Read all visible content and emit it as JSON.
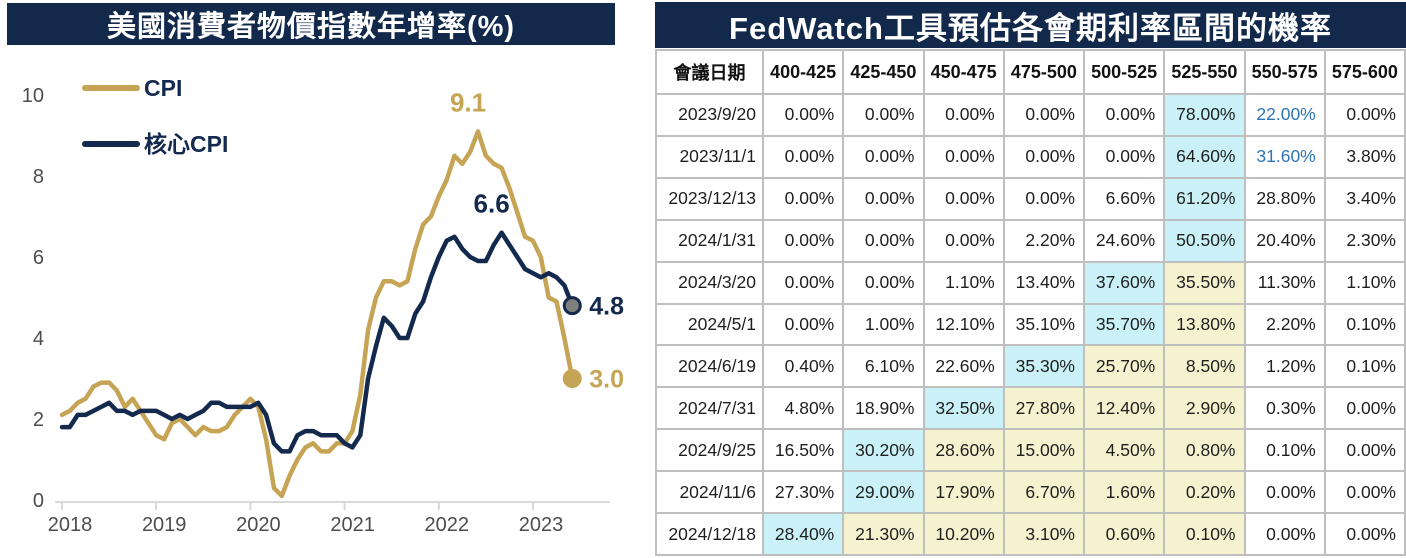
{
  "left_panel": {
    "title": "美國消費者物價指數年增率(%)"
  },
  "chart_data": {
    "type": "line",
    "title": "美國消費者物價指數年增率(%)",
    "x_unit": "month",
    "x_start": "2018-01",
    "x_end": "2023-06",
    "x_tick_labels": [
      "2018",
      "2019",
      "2020",
      "2021",
      "2022",
      "2023"
    ],
    "y_ticks": [
      0,
      2,
      4,
      6,
      8,
      10
    ],
    "ylim": [
      0,
      10
    ],
    "grid": false,
    "legend_position": "top-left",
    "axis_color": "#D9D9D9",
    "axis_text_color": "#4D4D4D",
    "series": [
      {
        "name": "CPI",
        "color": "#C6A455",
        "peak_label": "9.1",
        "end_label": "3.0",
        "marker": {
          "fill": "#C6A455",
          "stroke": "#C6A455"
        },
        "values": [
          2.1,
          2.2,
          2.4,
          2.5,
          2.8,
          2.9,
          2.9,
          2.7,
          2.3,
          2.5,
          2.2,
          1.9,
          1.6,
          1.5,
          1.9,
          2.0,
          1.8,
          1.6,
          1.8,
          1.7,
          1.7,
          1.8,
          2.1,
          2.3,
          2.5,
          2.3,
          1.5,
          0.3,
          0.1,
          0.6,
          1.0,
          1.3,
          1.4,
          1.2,
          1.2,
          1.4,
          1.4,
          1.7,
          2.6,
          4.2,
          5.0,
          5.4,
          5.4,
          5.3,
          5.4,
          6.2,
          6.8,
          7.0,
          7.5,
          7.9,
          8.5,
          8.3,
          8.6,
          9.1,
          8.5,
          8.3,
          8.2,
          7.7,
          7.1,
          6.5,
          6.4,
          6.0,
          5.0,
          4.9,
          4.0,
          3.0
        ]
      },
      {
        "name": "核心CPI",
        "color": "#14294E",
        "peak_label": "6.6",
        "end_label": "4.8",
        "marker": {
          "fill": "#7F7F7F",
          "stroke": "#14294E"
        },
        "values": [
          1.8,
          1.8,
          2.1,
          2.1,
          2.2,
          2.3,
          2.4,
          2.2,
          2.2,
          2.1,
          2.2,
          2.2,
          2.2,
          2.1,
          2.0,
          2.1,
          2.0,
          2.1,
          2.2,
          2.4,
          2.4,
          2.3,
          2.3,
          2.3,
          2.3,
          2.4,
          2.1,
          1.4,
          1.2,
          1.2,
          1.6,
          1.7,
          1.7,
          1.6,
          1.6,
          1.6,
          1.4,
          1.3,
          1.6,
          3.0,
          3.8,
          4.5,
          4.3,
          4.0,
          4.0,
          4.6,
          4.9,
          5.5,
          6.0,
          6.4,
          6.5,
          6.2,
          6.0,
          5.9,
          5.9,
          6.3,
          6.6,
          6.3,
          6.0,
          5.7,
          5.6,
          5.5,
          5.6,
          5.5,
          5.3,
          4.8
        ]
      }
    ]
  },
  "table": {
    "title": "FedWatch工具預估各會期利率區間的機率",
    "columns": [
      "會議日期",
      "400-425",
      "425-450",
      "450-475",
      "475-500",
      "500-525",
      "525-550",
      "550-575",
      "575-600"
    ],
    "colors": {
      "highlight_cyan": "#C9F1F7",
      "highlight_yellow": "#F5F2D0",
      "blue_text": "#2E74B5",
      "border": "#BFBFBF",
      "title_bg": "#12294B"
    },
    "rows": [
      {
        "date": "2023/9/20",
        "values": [
          "0.00%",
          "0.00%",
          "0.00%",
          "0.00%",
          "0.00%",
          "78.00%",
          "22.00%",
          "0.00%"
        ],
        "cyan": 5,
        "yellow": [],
        "blue_text": [
          6
        ]
      },
      {
        "date": "2023/11/1",
        "values": [
          "0.00%",
          "0.00%",
          "0.00%",
          "0.00%",
          "0.00%",
          "64.60%",
          "31.60%",
          "3.80%"
        ],
        "cyan": 5,
        "yellow": [],
        "blue_text": [
          6
        ]
      },
      {
        "date": "2023/12/13",
        "values": [
          "0.00%",
          "0.00%",
          "0.00%",
          "0.00%",
          "6.60%",
          "61.20%",
          "28.80%",
          "3.40%"
        ],
        "cyan": 5,
        "yellow": [],
        "blue_text": []
      },
      {
        "date": "2024/1/31",
        "values": [
          "0.00%",
          "0.00%",
          "0.00%",
          "2.20%",
          "24.60%",
          "50.50%",
          "20.40%",
          "2.30%"
        ],
        "cyan": 5,
        "yellow": [],
        "blue_text": []
      },
      {
        "date": "2024/3/20",
        "values": [
          "0.00%",
          "0.00%",
          "1.10%",
          "13.40%",
          "37.60%",
          "35.50%",
          "11.30%",
          "1.10%"
        ],
        "cyan": 4,
        "yellow": [
          5
        ],
        "blue_text": []
      },
      {
        "date": "2024/5/1",
        "values": [
          "0.00%",
          "1.00%",
          "12.10%",
          "35.10%",
          "35.70%",
          "13.80%",
          "2.20%",
          "0.10%"
        ],
        "cyan": 4,
        "yellow": [
          5
        ],
        "blue_text": []
      },
      {
        "date": "2024/6/19",
        "values": [
          "0.40%",
          "6.10%",
          "22.60%",
          "35.30%",
          "25.70%",
          "8.50%",
          "1.20%",
          "0.10%"
        ],
        "cyan": 3,
        "yellow": [
          4,
          5
        ],
        "blue_text": []
      },
      {
        "date": "2024/7/31",
        "values": [
          "4.80%",
          "18.90%",
          "32.50%",
          "27.80%",
          "12.40%",
          "2.90%",
          "0.30%",
          "0.00%"
        ],
        "cyan": 2,
        "yellow": [
          3,
          4,
          5
        ],
        "blue_text": []
      },
      {
        "date": "2024/9/25",
        "values": [
          "16.50%",
          "30.20%",
          "28.60%",
          "15.00%",
          "4.50%",
          "0.80%",
          "0.10%",
          "0.00%"
        ],
        "cyan": 1,
        "yellow": [
          2,
          3,
          4,
          5
        ],
        "blue_text": []
      },
      {
        "date": "2024/11/6",
        "values": [
          "27.30%",
          "29.00%",
          "17.90%",
          "6.70%",
          "1.60%",
          "0.20%",
          "0.00%",
          "0.00%"
        ],
        "cyan": 1,
        "yellow": [
          2,
          3,
          4,
          5
        ],
        "blue_text": []
      },
      {
        "date": "2024/12/18",
        "values": [
          "28.40%",
          "21.30%",
          "10.20%",
          "3.10%",
          "0.60%",
          "0.10%",
          "0.00%",
          "0.00%"
        ],
        "cyan": 0,
        "yellow": [
          1,
          2,
          3,
          4,
          5
        ],
        "blue_text": []
      }
    ]
  }
}
